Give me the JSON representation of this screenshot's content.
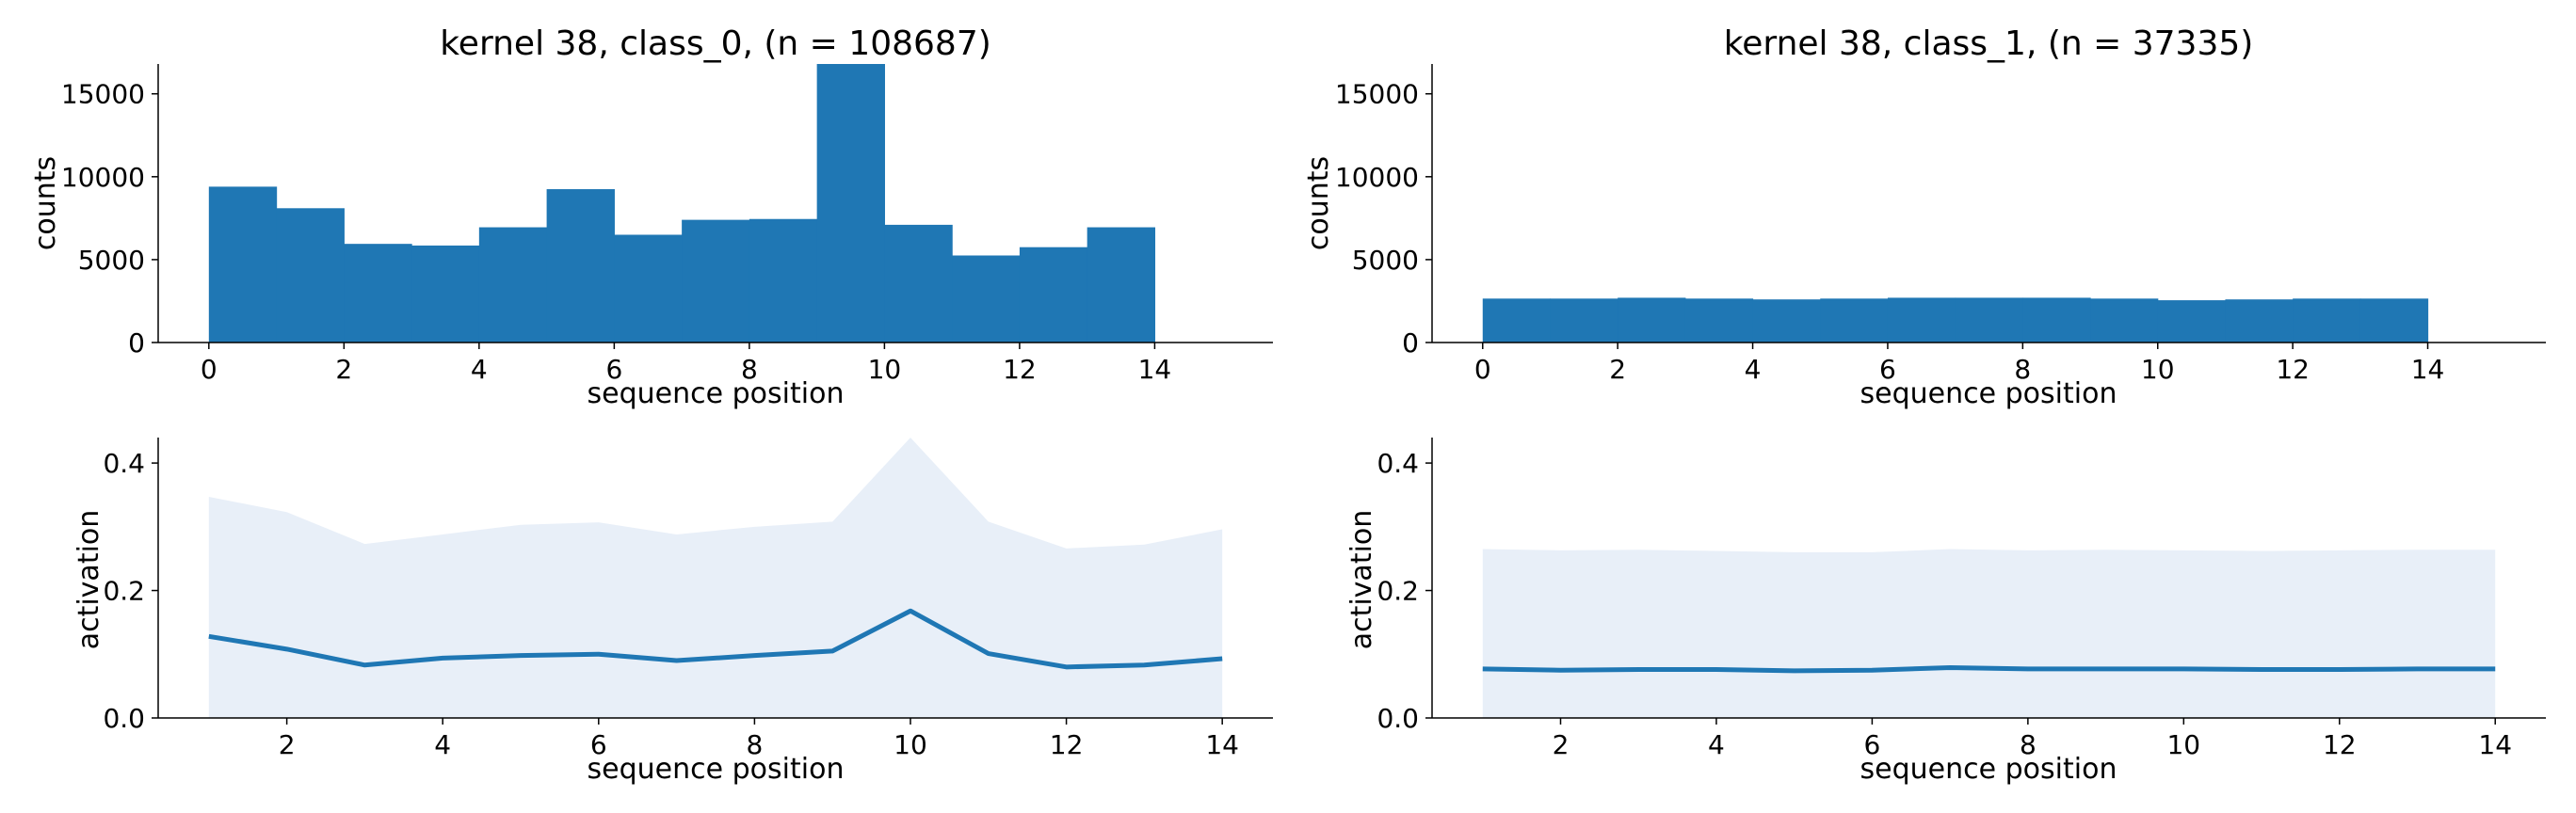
{
  "colors": {
    "bar": "#1f77b4",
    "line": "#1f77b4",
    "band": "#e8eff8",
    "axis": "#000000"
  },
  "chart_data": [
    {
      "type": "bar",
      "title": "kernel 38, class_0, (n = 108687)",
      "xlabel": "sequence position",
      "ylabel": "counts",
      "xlim": [
        -0.75,
        15.75
      ],
      "ylim": [
        0,
        16800
      ],
      "xticks": [
        "0",
        "2",
        "4",
        "6",
        "8",
        "10",
        "12",
        "14"
      ],
      "yticks": [
        "0",
        "5000",
        "10000",
        "15000"
      ],
      "bin_edges": [
        0,
        1,
        2,
        3,
        4,
        5,
        6,
        7,
        8,
        9,
        10,
        11,
        12,
        13,
        14
      ],
      "values": [
        9400,
        8100,
        5950,
        5850,
        6950,
        9250,
        6500,
        7400,
        7450,
        16800,
        7100,
        5250,
        5750,
        6950
      ],
      "grid": false
    },
    {
      "type": "bar",
      "title": "kernel 38, class_1, (n = 37335)",
      "xlabel": "sequence position",
      "ylabel": "counts",
      "xlim": [
        -0.75,
        15.75
      ],
      "ylim": [
        0,
        16800
      ],
      "xticks": [
        "0",
        "2",
        "4",
        "6",
        "8",
        "10",
        "12",
        "14"
      ],
      "yticks": [
        "0",
        "5000",
        "10000",
        "15000"
      ],
      "bin_edges": [
        0,
        1,
        2,
        3,
        4,
        5,
        6,
        7,
        8,
        9,
        10,
        11,
        12,
        13,
        14
      ],
      "values": [
        2650,
        2650,
        2700,
        2650,
        2600,
        2650,
        2700,
        2700,
        2700,
        2650,
        2550,
        2600,
        2650,
        2650
      ],
      "grid": false
    },
    {
      "type": "area",
      "title": "",
      "xlabel": "sequence position",
      "ylabel": "activation",
      "xlim": [
        0.35,
        14.65
      ],
      "ylim": [
        0,
        0.44
      ],
      "xticks": [
        "2",
        "4",
        "6",
        "8",
        "10",
        "12",
        "14"
      ],
      "yticks": [
        "0.0",
        "0.2",
        "0.4"
      ],
      "x": [
        1,
        2,
        3,
        4,
        5,
        6,
        7,
        8,
        9,
        10,
        11,
        12,
        13,
        14
      ],
      "mean": [
        0.128,
        0.108,
        0.083,
        0.094,
        0.098,
        0.1,
        0.09,
        0.098,
        0.105,
        0.168,
        0.101,
        0.08,
        0.083,
        0.093
      ],
      "upper": [
        0.347,
        0.323,
        0.273,
        0.288,
        0.303,
        0.307,
        0.288,
        0.3,
        0.308,
        0.44,
        0.308,
        0.266,
        0.272,
        0.296
      ],
      "lower": [
        0,
        0,
        0,
        0,
        0,
        0,
        0,
        0,
        0,
        0,
        0,
        0,
        0,
        0
      ],
      "grid": false
    },
    {
      "type": "area",
      "title": "",
      "xlabel": "sequence position",
      "ylabel": "activation",
      "xlim": [
        0.35,
        14.65
      ],
      "ylim": [
        0,
        0.44
      ],
      "xticks": [
        "2",
        "4",
        "6",
        "8",
        "10",
        "12",
        "14"
      ],
      "yticks": [
        "0.0",
        "0.2",
        "0.4"
      ],
      "x": [
        1,
        2,
        3,
        4,
        5,
        6,
        7,
        8,
        9,
        10,
        11,
        12,
        13,
        14
      ],
      "mean": [
        0.077,
        0.075,
        0.076,
        0.076,
        0.074,
        0.075,
        0.079,
        0.077,
        0.077,
        0.077,
        0.076,
        0.076,
        0.077,
        0.077
      ],
      "upper": [
        0.265,
        0.263,
        0.264,
        0.262,
        0.26,
        0.26,
        0.265,
        0.263,
        0.264,
        0.263,
        0.262,
        0.263,
        0.264,
        0.264
      ],
      "lower": [
        0,
        0,
        0,
        0,
        0,
        0,
        0,
        0,
        0,
        0,
        0,
        0,
        0,
        0
      ],
      "grid": false
    }
  ]
}
